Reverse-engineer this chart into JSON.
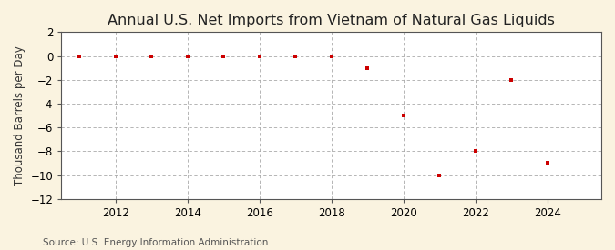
{
  "title": "Annual U.S. Net Imports from Vietnam of Natural Gas Liquids",
  "ylabel": "Thousand Barrels per Day",
  "source": "Source: U.S. Energy Information Administration",
  "background_color": "#faf3e0",
  "plot_bg_color": "#ffffff",
  "grid_color": "#aaaaaa",
  "marker_color": "#cc0000",
  "years": [
    2011,
    2012,
    2013,
    2014,
    2015,
    2016,
    2017,
    2018,
    2019,
    2020,
    2021,
    2022,
    2023,
    2024
  ],
  "values": [
    0,
    0,
    0,
    0,
    0,
    0,
    0,
    0,
    -1.0,
    -5.0,
    -10.0,
    -8.0,
    -2.0,
    -9.0
  ],
  "ylim": [
    -12,
    2
  ],
  "yticks": [
    -12,
    -10,
    -8,
    -6,
    -4,
    -2,
    0,
    2
  ],
  "xlim": [
    2010.5,
    2025.5
  ],
  "xticks": [
    2012,
    2014,
    2016,
    2018,
    2020,
    2022,
    2024
  ],
  "title_fontsize": 11.5,
  "label_fontsize": 8.5,
  "tick_fontsize": 8.5,
  "source_fontsize": 7.5
}
